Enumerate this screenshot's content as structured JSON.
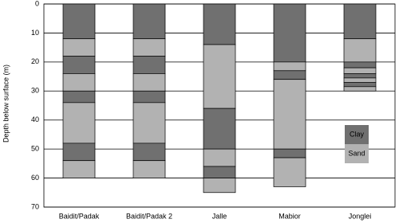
{
  "chart_data": {
    "type": "bar",
    "stacked": true,
    "inverted_y": true,
    "y_label": "Depth below surface (m)",
    "categories": [
      "Baidit/Padak",
      "Baidit/Padak 2",
      "Jalle",
      "Mabior",
      "Jonglei"
    ],
    "series": [
      {
        "name": "Clay",
        "color": "#707070"
      },
      {
        "name": "Sand",
        "color": "#b2b2b2"
      }
    ],
    "layers": [
      [
        12,
        6,
        6,
        6,
        4,
        14,
        6,
        6
      ],
      [
        12,
        6,
        6,
        6,
        4,
        14,
        6,
        6
      ],
      [
        14,
        22,
        14,
        6,
        4,
        5
      ],
      [
        20,
        3,
        3,
        24,
        3,
        10
      ],
      [
        12,
        8,
        2,
        2,
        1.5,
        1.5,
        1.5,
        1.5
      ]
    ],
    "ylim": [
      0,
      70
    ],
    "yticks": [
      0,
      10,
      20,
      30,
      40,
      50,
      60,
      70
    ],
    "grid": true,
    "legend": "lower-right"
  }
}
